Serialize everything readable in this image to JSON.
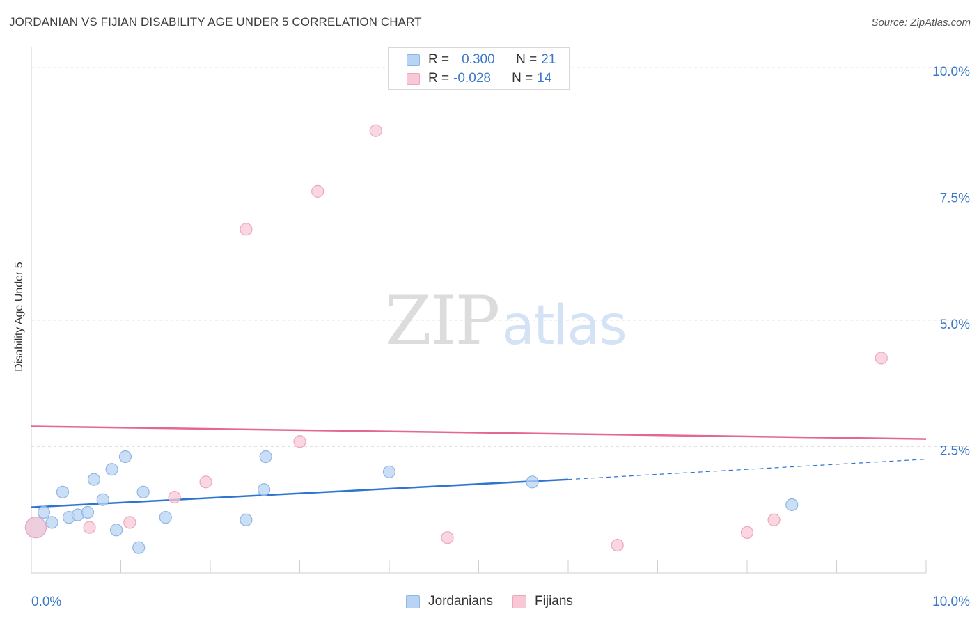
{
  "header": {
    "title": "JORDANIAN VS FIJIAN DISABILITY AGE UNDER 5 CORRELATION CHART",
    "source": "Source: ZipAtlas.com"
  },
  "watermark": {
    "zip": "ZIP",
    "atlas": "atlas"
  },
  "colors": {
    "blue_fill": "#b8d3f3",
    "blue_stroke": "#8fb6e6",
    "blue_line": "#2f74d0",
    "pink_fill": "#f8c8d6",
    "pink_stroke": "#eea6bd",
    "pink_line": "#e46790",
    "tick_text": "#3b78c9",
    "grid": "#e0e0e0"
  },
  "legend": {
    "rows": [
      {
        "r_label": "R =",
        "r_value": "0.300",
        "n_label": "N =",
        "n_value": "21"
      },
      {
        "r_label": "R =",
        "r_value": "-0.028",
        "n_label": "N =",
        "n_value": "14"
      }
    ],
    "series": [
      "Jordanians",
      "Fijians"
    ]
  },
  "chart_data": {
    "type": "scatter",
    "title": "JORDANIAN VS FIJIAN DISABILITY AGE UNDER 5 CORRELATION CHART",
    "xlabel": "",
    "ylabel": "Disability Age Under 5",
    "xlim": [
      0,
      10
    ],
    "ylim": [
      0,
      10
    ],
    "x_tick_labels": [
      "0.0%",
      "10.0%"
    ],
    "y_ticks": [
      2.5,
      5.0,
      7.5,
      10.0
    ],
    "y_tick_labels": [
      "2.5%",
      "5.0%",
      "7.5%",
      "10.0%"
    ],
    "grid": true,
    "series": [
      {
        "name": "Jordanians",
        "r": 0.3,
        "n": 21,
        "points": [
          [
            0.05,
            0.9
          ],
          [
            0.14,
            1.2
          ],
          [
            0.23,
            1.0
          ],
          [
            0.35,
            1.6
          ],
          [
            0.42,
            1.1
          ],
          [
            0.52,
            1.15
          ],
          [
            0.63,
            1.2
          ],
          [
            0.7,
            1.85
          ],
          [
            0.8,
            1.45
          ],
          [
            0.9,
            2.05
          ],
          [
            0.95,
            0.85
          ],
          [
            1.05,
            2.3
          ],
          [
            1.2,
            0.5
          ],
          [
            1.25,
            1.6
          ],
          [
            1.5,
            1.1
          ],
          [
            2.4,
            1.05
          ],
          [
            2.6,
            1.65
          ],
          [
            2.62,
            2.3
          ],
          [
            4.0,
            2.0
          ],
          [
            5.6,
            1.8
          ],
          [
            8.5,
            1.35
          ]
        ],
        "trend": {
          "x": [
            0,
            6
          ],
          "y": [
            1.3,
            1.85
          ]
        },
        "trend_dashed": {
          "x": [
            6,
            10
          ],
          "y": [
            1.85,
            2.25
          ]
        }
      },
      {
        "name": "Fijians",
        "r": -0.028,
        "n": 14,
        "points": [
          [
            0.05,
            0.9
          ],
          [
            0.65,
            0.9
          ],
          [
            1.1,
            1.0
          ],
          [
            1.6,
            1.5
          ],
          [
            1.95,
            1.8
          ],
          [
            2.4,
            6.8
          ],
          [
            3.0,
            2.6
          ],
          [
            3.2,
            7.55
          ],
          [
            3.85,
            8.75
          ],
          [
            4.65,
            0.7
          ],
          [
            6.55,
            0.55
          ],
          [
            8.0,
            0.8
          ],
          [
            8.3,
            1.05
          ],
          [
            9.5,
            4.25
          ]
        ],
        "trend": {
          "x": [
            0,
            10
          ],
          "y": [
            2.9,
            2.65
          ]
        }
      }
    ]
  }
}
